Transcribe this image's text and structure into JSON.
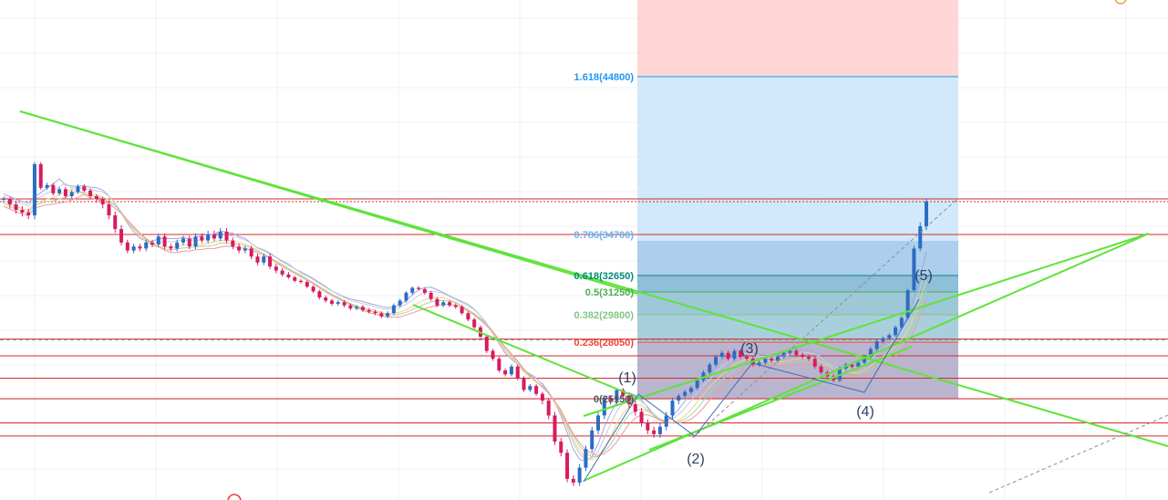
{
  "chart_data": {
    "type": "candlestick",
    "grid": true,
    "price_lines": [
      25150,
      24500,
      24150,
      26200,
      27350,
      28250,
      34700,
      36000
    ],
    "current_price": 35900,
    "dashed_price": 28200,
    "fib_levels": [
      {
        "label": "1.618(44800)",
        "ratio": 1.618,
        "price": 44800,
        "color": "#2196f3"
      },
      {
        "label": "0.786(34700)",
        "ratio": 0.786,
        "price": 34700,
        "color": "#64b5f6"
      },
      {
        "label": "0.618(32650)",
        "ratio": 0.618,
        "price": 32650,
        "color": "#00897b"
      },
      {
        "label": "0.5(31250)",
        "ratio": 0.5,
        "price": 31250,
        "color": "#4caf50"
      },
      {
        "label": "0.382(29800)",
        "ratio": 0.382,
        "price": 29800,
        "color": "#81c784"
      },
      {
        "label": "0.236(28050)",
        "ratio": 0.236,
        "price": 28050,
        "color": "#f44336"
      },
      {
        "label": "0(25150)",
        "ratio": 0,
        "price": 25150,
        "color": "#555555"
      }
    ],
    "elliott_waves": [
      {
        "label": "(1)",
        "price": 25300
      },
      {
        "label": "(2)",
        "price": 24300
      },
      {
        "label": "(3)",
        "price": 28000
      },
      {
        "label": "(4)",
        "price": 25300
      },
      {
        "label": "(5)",
        "price": 32600
      }
    ],
    "candles_close": [
      36000,
      35800,
      35600,
      35500,
      35400,
      38500,
      36800,
      37000,
      36400,
      36700,
      36200,
      36500,
      36900,
      36600,
      36200,
      36000,
      35800,
      35400,
      34900,
      34300,
      33900,
      34100,
      34000,
      34300,
      34200,
      34600,
      34100,
      34000,
      34300,
      34500,
      34100,
      34600,
      34400,
      34700,
      34500,
      34800,
      34400,
      34100,
      33900,
      34000,
      33600,
      33300,
      33600,
      33100,
      32900,
      32700,
      32500,
      32200,
      32100,
      31700,
      31300,
      30900,
      30700,
      30500,
      30600,
      30400,
      30200,
      30300,
      30100,
      30000,
      29900,
      29700,
      29900,
      30400,
      30700,
      31200,
      31600,
      31500,
      31200,
      30800,
      30400,
      30600,
      30400,
      30300,
      29900,
      29500,
      29000,
      28400,
      27600,
      27200,
      26600,
      26400,
      26800,
      26200,
      25600,
      25800,
      25400,
      25100,
      24700,
      24000,
      23700,
      23000,
      22900,
      23300,
      23800,
      24300,
      24700,
      25200,
      25100,
      25600,
      25300,
      25000,
      24800,
      24500,
      24300,
      24200,
      24400,
      24700,
      25100,
      25300,
      25500,
      25700,
      26100,
      26500,
      26900,
      27300,
      27500,
      27200,
      27600,
      27300,
      27200,
      26900,
      27000,
      27200,
      27100,
      27300,
      27500,
      27600,
      27400,
      27300,
      27200,
      26800,
      26500,
      26300,
      26100,
      26700,
      26900,
      26800,
      27000,
      27300,
      27700,
      28100,
      28300,
      28500,
      29000,
      29600,
      31400,
      34000,
      35000,
      35900
    ]
  }
}
